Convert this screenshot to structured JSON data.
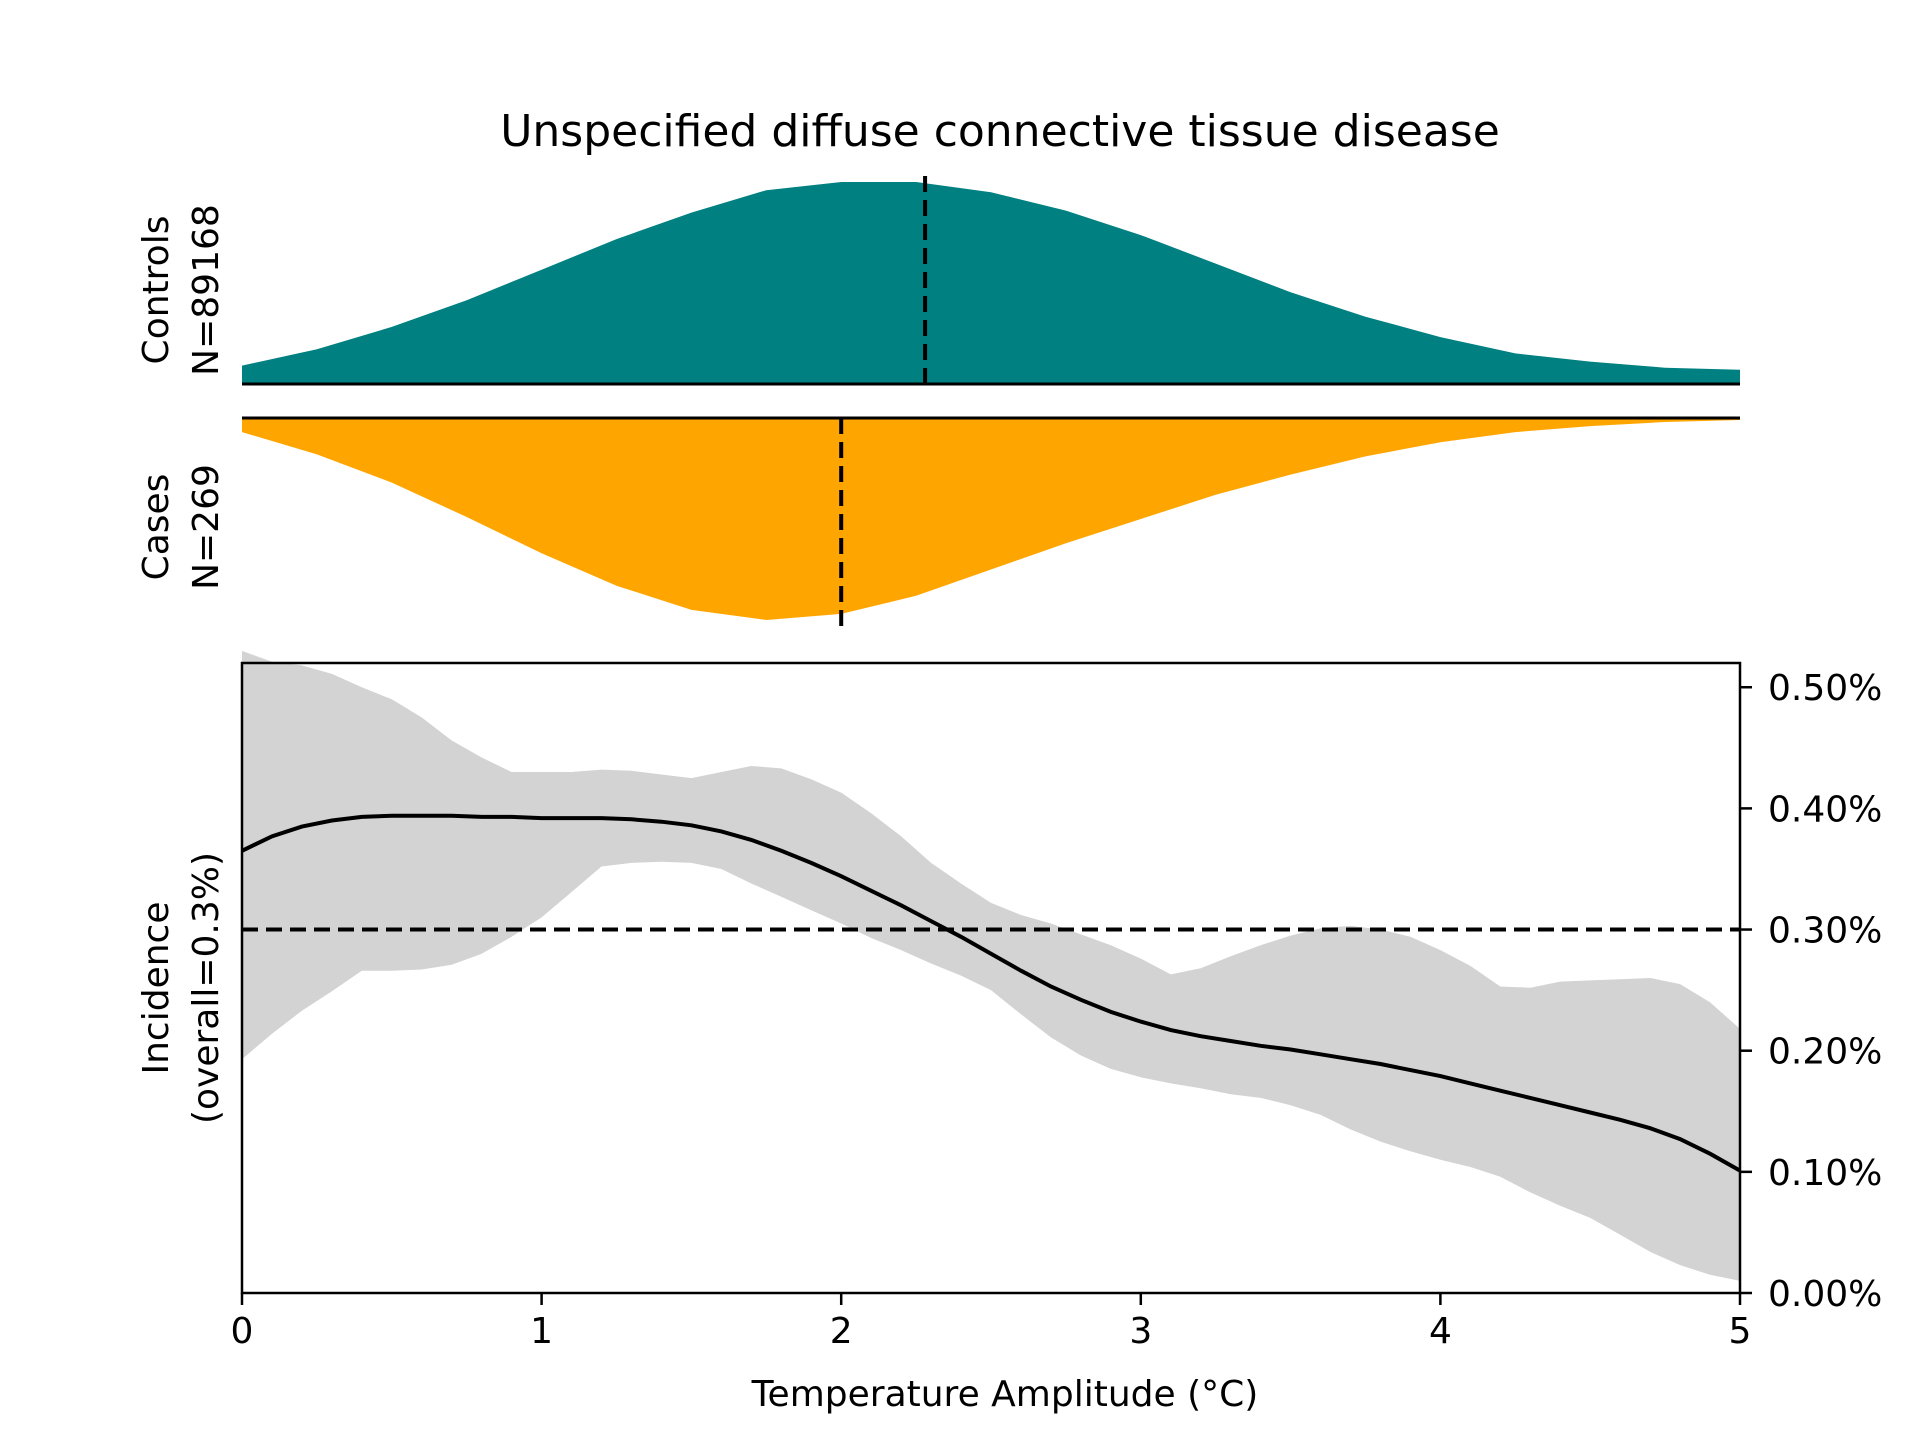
{
  "chart_data": [
    {
      "type": "area",
      "panel": "controls-density",
      "title": "Unspecified diffuse connective tissue disease",
      "ylabel_lines": [
        "Controls",
        "N=89168"
      ],
      "color": "#008080",
      "median": 2.28,
      "x": [
        0,
        0.25,
        0.5,
        0.75,
        1,
        1.25,
        1.5,
        1.75,
        2,
        2.25,
        2.5,
        2.75,
        3,
        3.25,
        3.5,
        3.75,
        4,
        4.25,
        4.5,
        4.75,
        5
      ],
      "density": [
        0.09,
        0.17,
        0.28,
        0.41,
        0.56,
        0.71,
        0.84,
        0.95,
        0.99,
        0.99,
        0.94,
        0.85,
        0.73,
        0.59,
        0.45,
        0.33,
        0.23,
        0.15,
        0.11,
        0.08,
        0.07
      ]
    },
    {
      "type": "area",
      "panel": "cases-density",
      "ylabel_lines": [
        "Cases",
        "N=269"
      ],
      "color": "#FFA500",
      "median": 2.0,
      "x": [
        0,
        0.25,
        0.5,
        0.75,
        1,
        1.25,
        1.5,
        1.75,
        2,
        2.25,
        2.5,
        2.75,
        3,
        3.25,
        3.5,
        3.75,
        4,
        4.25,
        4.5,
        4.75,
        5
      ],
      "density": [
        0.07,
        0.18,
        0.32,
        0.49,
        0.67,
        0.83,
        0.95,
        1.0,
        0.97,
        0.88,
        0.75,
        0.62,
        0.5,
        0.38,
        0.28,
        0.19,
        0.12,
        0.07,
        0.04,
        0.02,
        0.01
      ]
    },
    {
      "type": "line",
      "panel": "incidence",
      "xlabel": "Temperature Amplitude (°C)",
      "ylabel_lines": [
        "Incidence",
        "(overall=0.3%)"
      ],
      "xlim": [
        0,
        5
      ],
      "ylim": [
        0,
        0.52
      ],
      "xticks": [
        "0",
        "1",
        "2",
        "3",
        "4",
        "5"
      ],
      "yticks": [
        "0.00%",
        "0.10%",
        "0.20%",
        "0.30%",
        "0.40%",
        "0.50%"
      ],
      "overall_incidence": 0.3,
      "band_color": "#D3D3D3",
      "x": [
        0,
        0.1,
        0.2,
        0.3,
        0.4,
        0.5,
        0.6,
        0.7,
        0.8,
        0.9,
        1.0,
        1.1,
        1.2,
        1.3,
        1.4,
        1.5,
        1.6,
        1.7,
        1.8,
        1.9,
        2.0,
        2.1,
        2.2,
        2.3,
        2.4,
        2.5,
        2.6,
        2.7,
        2.8,
        2.9,
        3.0,
        3.1,
        3.2,
        3.3,
        3.4,
        3.5,
        3.6,
        3.7,
        3.8,
        3.9,
        4.0,
        4.1,
        4.2,
        4.3,
        4.4,
        4.5,
        4.6,
        4.7,
        4.8,
        4.9,
        5.0
      ],
      "incidence": [
        0.365,
        0.377,
        0.385,
        0.39,
        0.393,
        0.394,
        0.394,
        0.394,
        0.393,
        0.393,
        0.392,
        0.392,
        0.392,
        0.391,
        0.389,
        0.386,
        0.381,
        0.374,
        0.365,
        0.355,
        0.344,
        0.332,
        0.32,
        0.307,
        0.294,
        0.28,
        0.266,
        0.253,
        0.242,
        0.232,
        0.224,
        0.217,
        0.212,
        0.208,
        0.204,
        0.201,
        0.197,
        0.193,
        0.189,
        0.184,
        0.179,
        0.173,
        0.167,
        0.161,
        0.155,
        0.149,
        0.143,
        0.136,
        0.127,
        0.115,
        0.101
      ],
      "ci_upper": [
        0.53,
        0.521,
        0.518,
        0.511,
        0.5,
        0.49,
        0.475,
        0.456,
        0.442,
        0.43,
        0.43,
        0.43,
        0.432,
        0.431,
        0.428,
        0.425,
        0.43,
        0.435,
        0.433,
        0.424,
        0.413,
        0.396,
        0.377,
        0.355,
        0.338,
        0.322,
        0.312,
        0.305,
        0.296,
        0.287,
        0.276,
        0.263,
        0.268,
        0.278,
        0.287,
        0.295,
        0.301,
        0.303,
        0.3,
        0.294,
        0.283,
        0.27,
        0.253,
        0.252,
        0.257,
        0.258,
        0.259,
        0.26,
        0.255,
        0.24,
        0.218
      ],
      "ci_lower": [
        0.193,
        0.214,
        0.233,
        0.249,
        0.266,
        0.266,
        0.267,
        0.271,
        0.28,
        0.294,
        0.31,
        0.331,
        0.352,
        0.355,
        0.356,
        0.355,
        0.35,
        0.338,
        0.327,
        0.316,
        0.305,
        0.293,
        0.283,
        0.272,
        0.262,
        0.25,
        0.23,
        0.211,
        0.196,
        0.185,
        0.178,
        0.173,
        0.169,
        0.164,
        0.161,
        0.155,
        0.147,
        0.135,
        0.125,
        0.117,
        0.11,
        0.104,
        0.096,
        0.083,
        0.072,
        0.062,
        0.048,
        0.034,
        0.023,
        0.015,
        0.01
      ]
    }
  ]
}
